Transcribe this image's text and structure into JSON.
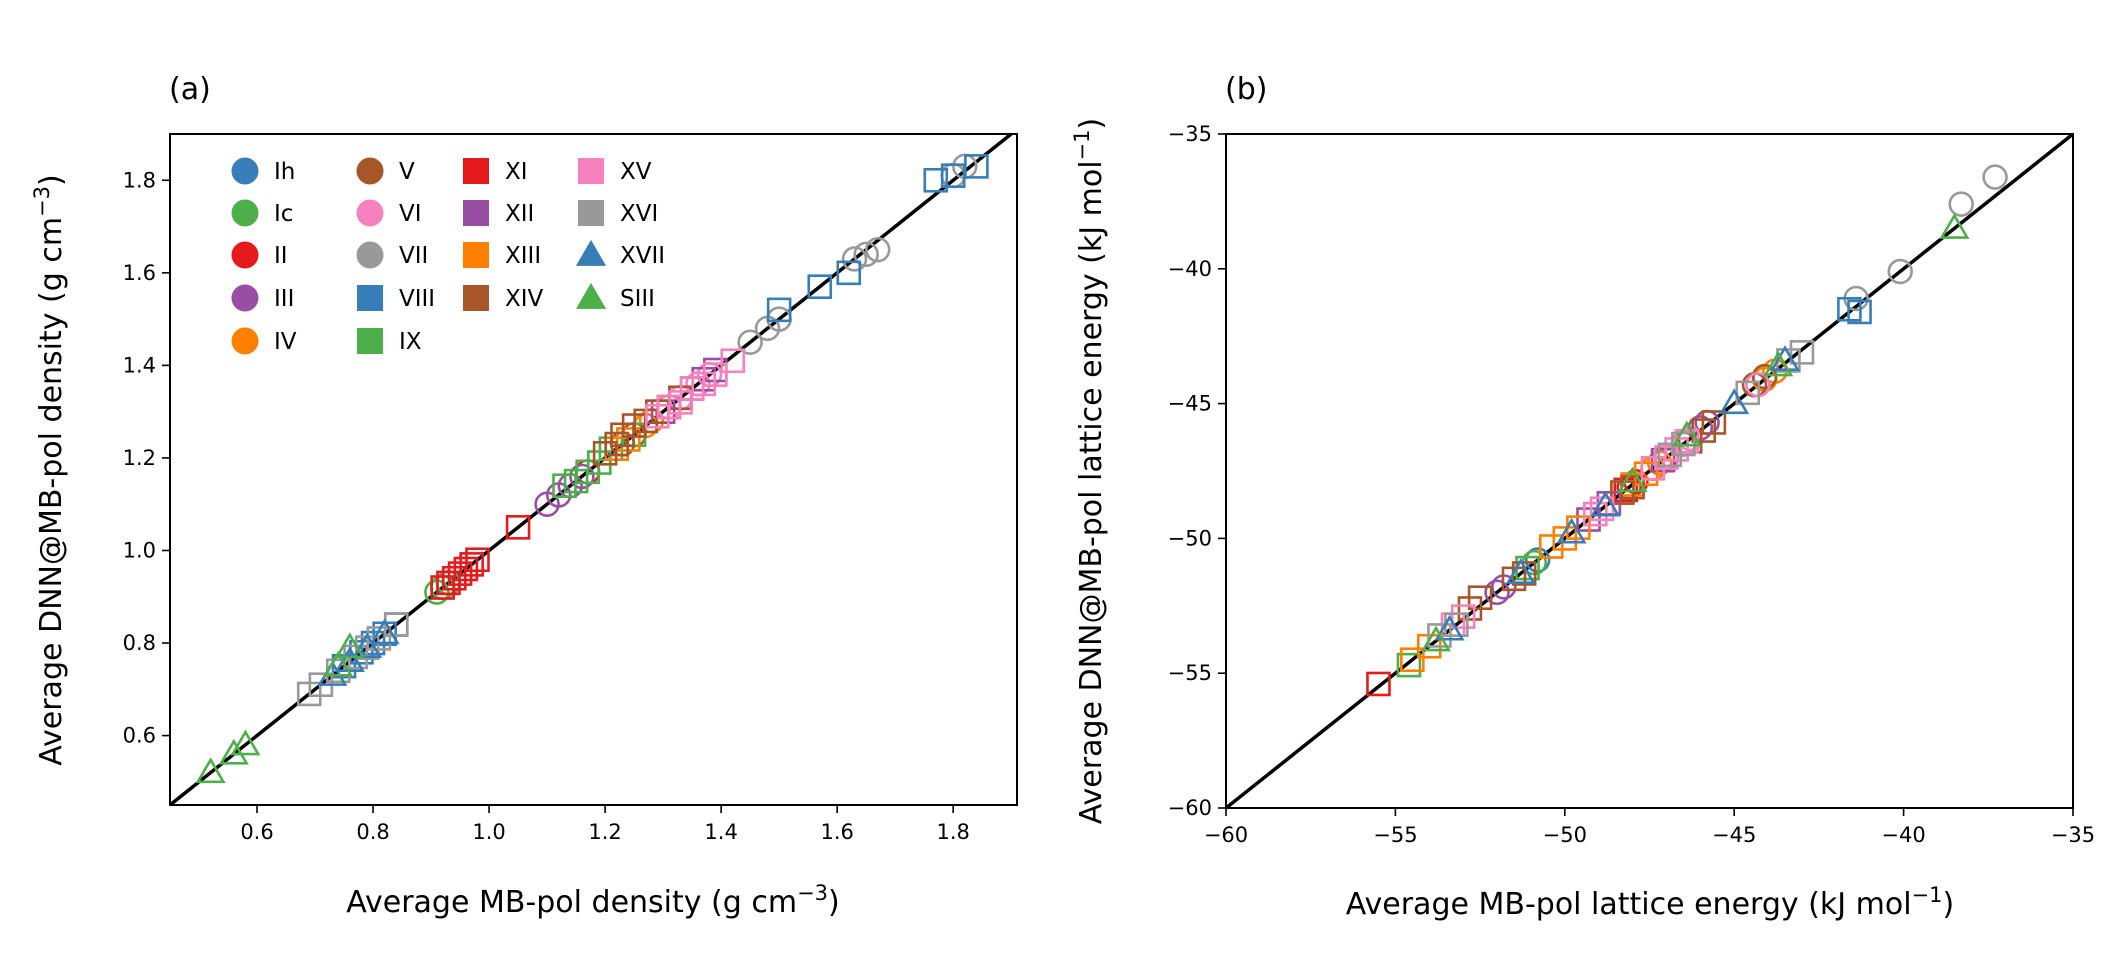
{
  "colors": {
    "Ih": "#377eb8",
    "Ic": "#4daf4a",
    "II": "#e41a1c",
    "III": "#984ea3",
    "IV": "#ff7f00",
    "V": "#a65628",
    "VI": "#f781bf",
    "VII": "#999999",
    "VIII": "#377eb8",
    "IX": "#4daf4a",
    "XI": "#e41a1c",
    "XII": "#984ea3",
    "XIII": "#ff7f00",
    "XIV": "#a65628",
    "XV": "#f781bf",
    "XVI": "#999999",
    "XVII": "#377eb8",
    "SIII": "#4daf4a"
  },
  "markers": {
    "Ih": "circle",
    "Ic": "circle",
    "II": "circle",
    "III": "circle",
    "IV": "circle",
    "V": "circle",
    "VI": "circle",
    "VII": "circle",
    "VIII": "square",
    "IX": "square",
    "XI": "square",
    "XII": "square",
    "XIII": "square",
    "XIV": "square",
    "XV": "square",
    "XVI": "square",
    "XVII": "triangle",
    "SIII": "triangle"
  },
  "legend": [
    [
      "Ih",
      "Ic",
      "II",
      "III",
      "IV"
    ],
    [
      "V",
      "VI",
      "VII",
      "VIII",
      "IX"
    ],
    [
      "XI",
      "XII",
      "XIII",
      "XIV"
    ],
    [
      "XV",
      "XVI",
      "XVII",
      "SIII"
    ]
  ],
  "chart_data": [
    {
      "type": "scatter",
      "panel_label": "(a)",
      "xlabel": "Average MB-pol density (g cm",
      "xlabel_sup": "−3",
      "xlabel_end": ")",
      "ylabel": "Average DNN@MB-pol  density (g cm",
      "ylabel_sup": "−3",
      "ylabel_end": ")",
      "xlim": [
        0.45,
        1.91
      ],
      "ylim": [
        0.45,
        1.9
      ],
      "xticks": [
        0.6,
        0.8,
        1.0,
        1.2,
        1.4,
        1.6,
        1.8
      ],
      "xtick_labels": [
        "0.6",
        "0.8",
        "1.0",
        "1.2",
        "1.4",
        "1.6",
        "1.8"
      ],
      "yticks": [
        0.6,
        0.8,
        1.0,
        1.2,
        1.4,
        1.6,
        1.8
      ],
      "ytick_labels": [
        "0.6",
        "0.8",
        "1.0",
        "1.2",
        "1.4",
        "1.6",
        "1.8"
      ],
      "diagonal": true,
      "legend_position": "top-left",
      "series": [
        {
          "name": "Ih",
          "points": [
            [
              0.93,
              0.93
            ]
          ]
        },
        {
          "name": "Ic",
          "points": [
            [
              0.91,
              0.91
            ],
            [
              0.93,
              0.93
            ],
            [
              0.92,
              0.92
            ]
          ]
        },
        {
          "name": "II",
          "points": [
            [
              1.17,
              1.17
            ]
          ]
        },
        {
          "name": "III",
          "points": [
            [
              1.1,
              1.1
            ],
            [
              1.12,
              1.12
            ],
            [
              1.14,
              1.14
            ],
            [
              1.16,
              1.16
            ]
          ]
        },
        {
          "name": "IV",
          "points": [
            [
              1.27,
              1.27
            ],
            [
              1.28,
              1.28
            ]
          ]
        },
        {
          "name": "V",
          "points": [
            [
              1.23,
              1.23
            ],
            [
              1.25,
              1.25
            ]
          ]
        },
        {
          "name": "VI",
          "points": [
            [
              1.31,
              1.31
            ],
            [
              1.33,
              1.33
            ],
            [
              1.36,
              1.36
            ],
            [
              1.38,
              1.38
            ]
          ]
        },
        {
          "name": "VII",
          "points": [
            [
              1.45,
              1.45
            ],
            [
              1.48,
              1.48
            ],
            [
              1.5,
              1.5
            ],
            [
              1.63,
              1.63
            ],
            [
              1.65,
              1.64
            ],
            [
              1.67,
              1.65
            ],
            [
              1.8,
              1.81
            ],
            [
              1.82,
              1.83
            ]
          ]
        },
        {
          "name": "VIII",
          "points": [
            [
              0.75,
              0.75
            ],
            [
              0.78,
              0.78
            ],
            [
              0.8,
              0.8
            ],
            [
              0.82,
              0.82
            ],
            [
              0.84,
              0.84
            ],
            [
              1.5,
              1.52
            ],
            [
              1.57,
              1.57
            ],
            [
              1.62,
              1.6
            ],
            [
              1.77,
              1.8
            ],
            [
              1.8,
              1.81
            ],
            [
              1.84,
              1.83
            ]
          ]
        },
        {
          "name": "IX",
          "points": [
            [
              1.13,
              1.14
            ],
            [
              1.15,
              1.15
            ],
            [
              1.17,
              1.17
            ],
            [
              1.19,
              1.19
            ],
            [
              1.21,
              1.22
            ],
            [
              1.25,
              1.25
            ]
          ]
        },
        {
          "name": "XI",
          "points": [
            [
              0.92,
              0.92
            ],
            [
              0.93,
              0.93
            ],
            [
              0.94,
              0.94
            ],
            [
              0.95,
              0.95
            ],
            [
              0.96,
              0.96
            ],
            [
              0.97,
              0.97
            ],
            [
              0.98,
              0.98
            ],
            [
              1.05,
              1.05
            ]
          ]
        },
        {
          "name": "XII",
          "points": [
            [
              1.3,
              1.3
            ],
            [
              1.33,
              1.33
            ],
            [
              1.35,
              1.35
            ],
            [
              1.37,
              1.37
            ],
            [
              1.39,
              1.39
            ]
          ]
        },
        {
          "name": "XIII",
          "points": [
            [
              1.22,
              1.22
            ],
            [
              1.24,
              1.24
            ]
          ]
        },
        {
          "name": "XIV",
          "points": [
            [
              1.2,
              1.21
            ],
            [
              1.22,
              1.23
            ],
            [
              1.23,
              1.25
            ],
            [
              1.25,
              1.27
            ],
            [
              1.27,
              1.28
            ],
            [
              1.29,
              1.3
            ],
            [
              1.31,
              1.31
            ],
            [
              1.33,
              1.33
            ]
          ]
        },
        {
          "name": "XV",
          "points": [
            [
              1.29,
              1.29
            ],
            [
              1.31,
              1.31
            ],
            [
              1.33,
              1.32
            ],
            [
              1.35,
              1.35
            ],
            [
              1.37,
              1.36
            ],
            [
              1.39,
              1.38
            ],
            [
              1.42,
              1.41
            ]
          ]
        },
        {
          "name": "XVI",
          "points": [
            [
              0.69,
              0.69
            ],
            [
              0.71,
              0.71
            ],
            [
              0.74,
              0.74
            ],
            [
              0.77,
              0.77
            ],
            [
              0.79,
              0.79
            ],
            [
              0.81,
              0.81
            ],
            [
              0.84,
              0.84
            ]
          ]
        },
        {
          "name": "XVII",
          "points": [
            [
              0.73,
              0.73
            ],
            [
              0.76,
              0.76
            ],
            [
              0.79,
              0.79
            ],
            [
              0.82,
              0.82
            ]
          ]
        },
        {
          "name": "SIII",
          "points": [
            [
              0.52,
              0.52
            ],
            [
              0.56,
              0.56
            ],
            [
              0.58,
              0.58
            ],
            [
              0.74,
              0.75
            ],
            [
              0.76,
              0.79
            ]
          ]
        }
      ]
    },
    {
      "type": "scatter",
      "panel_label": "(b)",
      "xlabel": "Average MB-pol lattice energy (kJ mol",
      "xlabel_sup": "−1",
      "xlabel_end": ")",
      "ylabel": "Average DNN@MB-pol lattice energy (kJ mol",
      "ylabel_sup": "−1",
      "ylabel_end": ")",
      "xlim": [
        -60,
        -35
      ],
      "ylim": [
        -60,
        -35
      ],
      "xticks": [
        -60,
        -55,
        -50,
        -45,
        -40,
        -35
      ],
      "xtick_labels": [
        "−60",
        "−55",
        "−50",
        "−45",
        "−40",
        "−35"
      ],
      "yticks": [
        -60,
        -55,
        -50,
        -45,
        -40,
        -35
      ],
      "ytick_labels": [
        "−60",
        "−55",
        "−50",
        "−45",
        "−40",
        "−35"
      ],
      "diagonal": true,
      "series": [
        {
          "name": "Ih",
          "points": [
            [
              -50.8,
              -50.8
            ]
          ]
        },
        {
          "name": "Ic",
          "points": [
            [
              -50.9,
              -50.9
            ]
          ]
        },
        {
          "name": "II",
          "points": [
            [
              -48.1,
              -48.1
            ],
            [
              -47.9,
              -47.9
            ]
          ]
        },
        {
          "name": "III",
          "points": [
            [
              -52.0,
              -52.0
            ],
            [
              -51.8,
              -51.8
            ],
            [
              -46.0,
              -45.9
            ],
            [
              -45.8,
              -45.7
            ]
          ]
        },
        {
          "name": "IV",
          "points": [
            [
              -47.4,
              -47.4
            ],
            [
              -47.2,
              -47.2
            ],
            [
              -44.1,
              -44.1
            ],
            [
              -43.8,
              -43.8
            ]
          ]
        },
        {
          "name": "V",
          "points": [
            [
              -47.0,
              -47.0
            ],
            [
              -46.5,
              -46.5
            ],
            [
              -44.4,
              -44.3
            ],
            [
              -44.1,
              -44.0
            ]
          ]
        },
        {
          "name": "VI",
          "points": [
            [
              -46.3,
              -46.3
            ],
            [
              -44.3,
              -44.3
            ]
          ]
        },
        {
          "name": "VII",
          "points": [
            [
              -41.4,
              -41.1
            ],
            [
              -40.1,
              -40.1
            ],
            [
              -38.3,
              -37.6
            ],
            [
              -37.3,
              -36.6
            ]
          ]
        },
        {
          "name": "VIII",
          "points": [
            [
              -41.6,
              -41.5
            ],
            [
              -41.3,
              -41.6
            ]
          ]
        },
        {
          "name": "IX",
          "points": [
            [
              -54.6,
              -54.7
            ],
            [
              -51.1,
              -51.1
            ]
          ]
        },
        {
          "name": "XI",
          "points": [
            [
              -55.5,
              -55.4
            ],
            [
              -48.2,
              -48.2
            ]
          ]
        },
        {
          "name": "XII",
          "points": [
            [
              -49.3,
              -49.3
            ],
            [
              -48.7,
              -48.7
            ],
            [
              -47.1,
              -47.1
            ]
          ]
        },
        {
          "name": "XIII",
          "points": [
            [
              -54.5,
              -54.5
            ],
            [
              -54.0,
              -54.0
            ],
            [
              -50.4,
              -50.3
            ],
            [
              -50.0,
              -50.0
            ],
            [
              -49.6,
              -49.6
            ],
            [
              -48.3,
              -48.3
            ],
            [
              -48.0,
              -48.0
            ],
            [
              -47.6,
              -47.6
            ]
          ]
        },
        {
          "name": "XIV",
          "points": [
            [
              -52.8,
              -52.6
            ],
            [
              -52.5,
              -52.2
            ],
            [
              -51.5,
              -51.5
            ],
            [
              -51.2,
              -51.3
            ],
            [
              -48.3,
              -48.3
            ],
            [
              -48.0,
              -48.1
            ],
            [
              -46.3,
              -46.4
            ],
            [
              -45.9,
              -46.0
            ],
            [
              -45.6,
              -45.7
            ]
          ]
        },
        {
          "name": "XV",
          "points": [
            [
              -53.3,
              -53.2
            ],
            [
              -53.0,
              -52.9
            ],
            [
              -49.1,
              -49.1
            ],
            [
              -48.9,
              -48.9
            ],
            [
              -47.4,
              -47.4
            ],
            [
              -47.0,
              -47.0
            ],
            [
              -46.7,
              -46.7
            ],
            [
              -46.4,
              -46.4
            ]
          ]
        },
        {
          "name": "XVI",
          "points": [
            [
              -53.7,
              -53.6
            ],
            [
              -53.2,
              -53.2
            ],
            [
              -46.9,
              -46.9
            ],
            [
              -46.5,
              -46.5
            ],
            [
              -44.6,
              -44.6
            ],
            [
              -43.4,
              -43.4
            ],
            [
              -43.0,
              -43.1
            ]
          ]
        },
        {
          "name": "XVII",
          "points": [
            [
              -53.4,
              -53.4
            ],
            [
              -51.3,
              -51.3
            ],
            [
              -49.8,
              -49.8
            ],
            [
              -48.8,
              -48.8
            ],
            [
              -45.0,
              -45.0
            ],
            [
              -43.5,
              -43.4
            ]
          ]
        },
        {
          "name": "SIII",
          "points": [
            [
              -53.8,
              -53.8
            ],
            [
              -48.0,
              -47.9
            ],
            [
              -46.4,
              -46.2
            ],
            [
              -43.7,
              -43.6
            ],
            [
              -38.5,
              -38.5
            ]
          ]
        }
      ]
    }
  ]
}
